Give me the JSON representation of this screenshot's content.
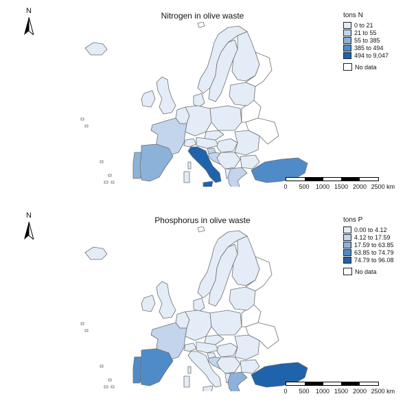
{
  "north_label": "N",
  "colors": {
    "class1": "#e3ecf7",
    "class2": "#c2d5ec",
    "class3": "#8db2da",
    "class4": "#4f8cc7",
    "class5": "#1f63ad",
    "border": "#6e6e6e",
    "nodata": "#ffffff"
  },
  "maps": [
    {
      "title": "Nitrogen in olive waste",
      "legend_title": "tons N",
      "legend_items": [
        {
          "label": "0 to 21",
          "class": 1
        },
        {
          "label": "21 to 55",
          "class": 2
        },
        {
          "label": "55 to 385",
          "class": 3
        },
        {
          "label": "385 to 494",
          "class": 4
        },
        {
          "label": "494 to 9,047",
          "class": 5
        }
      ],
      "nodata_label": "No data",
      "region_classes": {
        "iceland": 1,
        "norway": 1,
        "sweden": 1,
        "finland": 1,
        "uk": 1,
        "ireland": 1,
        "baltics": 1,
        "poland": 1,
        "germany": 1,
        "benelux": 1,
        "denmark": 1,
        "czech": 1,
        "austria": 1,
        "switzerland": 1,
        "hungary": 1,
        "romania": 1,
        "bulgaria": 1,
        "balkans": 1,
        "albania": 1,
        "cyprus": 1,
        "malta": 1,
        "france": 2,
        "portugal": 3,
        "spain": 3,
        "turkey": 4,
        "greece": 2,
        "italy": 5,
        "sardinia": 1,
        "corsica": 1,
        "sicily": 5,
        "slovenia": 2,
        "croatia": 2
      }
    },
    {
      "title": "Phosphorus in olive waste",
      "legend_title": "tons P",
      "legend_items": [
        {
          "label": "0.00 to 4.12",
          "class": 1
        },
        {
          "label": "4.12 to 17.59",
          "class": 2
        },
        {
          "label": "17.59 to 63.85",
          "class": 3
        },
        {
          "label": "63.85 to 74.79",
          "class": 4
        },
        {
          "label": "74.79 to 96.08",
          "class": 5
        }
      ],
      "nodata_label": "No data",
      "region_classes": {
        "iceland": 1,
        "norway": 1,
        "sweden": 1,
        "finland": 1,
        "uk": 1,
        "ireland": 1,
        "baltics": 1,
        "poland": 1,
        "germany": 1,
        "benelux": 1,
        "denmark": 1,
        "czech": 1,
        "austria": 1,
        "switzerland": 1,
        "hungary": 1,
        "romania": 1,
        "bulgaria": 1,
        "balkans": 1,
        "albania": 1,
        "cyprus": 1,
        "malta": 1,
        "france": 2,
        "portugal": 4,
        "spain": 4,
        "turkey": 5,
        "greece": 3,
        "italy": 1,
        "sardinia": 1,
        "corsica": 1,
        "sicily": 1,
        "slovenia": 1,
        "croatia": 2
      }
    }
  ],
  "scalebar": {
    "labels": [
      "0",
      "500",
      "1000",
      "1500",
      "2000",
      "2500 km"
    ]
  }
}
